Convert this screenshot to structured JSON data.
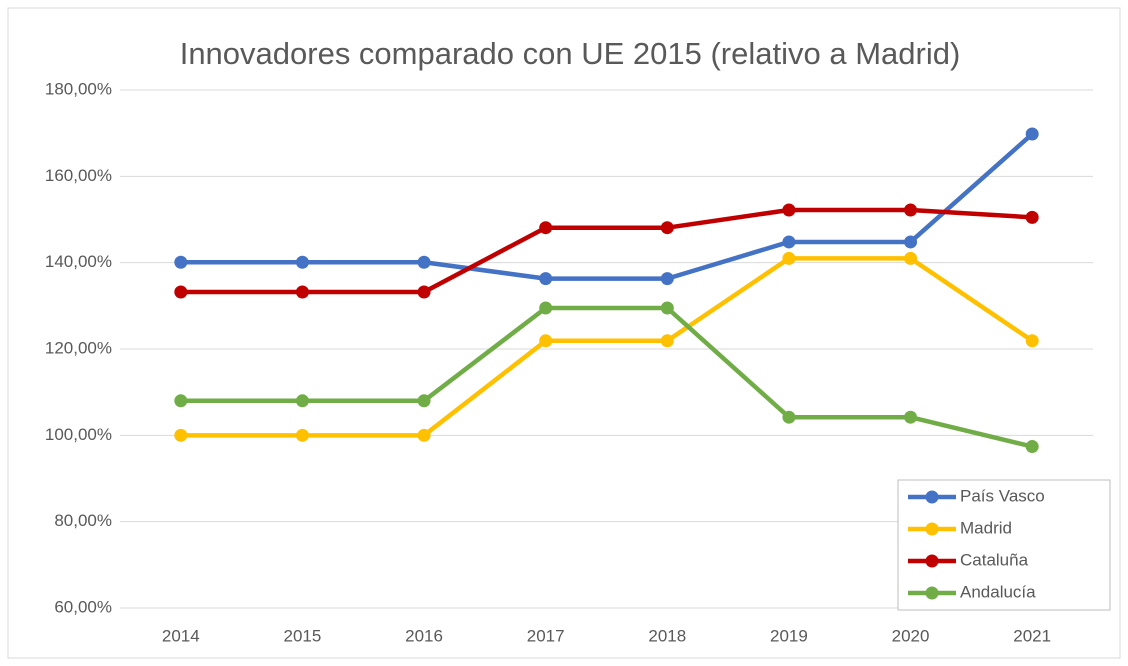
{
  "chart_data": {
    "type": "line",
    "title": "Innovadores comparado con UE 2015 (relativo a Madrid)",
    "categories": [
      "2014",
      "2015",
      "2016",
      "2017",
      "2018",
      "2019",
      "2020",
      "2021"
    ],
    "series": [
      {
        "name": "País Vasco",
        "color": "#4472c4",
        "values": [
          140.1,
          140.1,
          140.1,
          136.3,
          136.3,
          144.8,
          144.8,
          169.8
        ]
      },
      {
        "name": "Madrid",
        "color": "#ffc000",
        "values": [
          100,
          100,
          100,
          121.9,
          121.9,
          141,
          141,
          121.9
        ]
      },
      {
        "name": "Cataluña",
        "color": "#c00000",
        "values": [
          133.2,
          133.2,
          133.2,
          148.1,
          148.1,
          152.2,
          152.2,
          150.5
        ]
      },
      {
        "name": "Andalucía",
        "color": "#70ad47",
        "values": [
          108,
          108,
          108,
          129.5,
          129.5,
          104.2,
          104.2,
          97.4
        ]
      }
    ],
    "ylim": [
      60,
      180
    ],
    "yticks": [
      {
        "value": 60,
        "label": "60,00%"
      },
      {
        "value": 80,
        "label": "80,00%"
      },
      {
        "value": 100,
        "label": "100,00%"
      },
      {
        "value": 120,
        "label": "120,00%"
      },
      {
        "value": 140,
        "label": "140,00%"
      },
      {
        "value": 160,
        "label": "160,00%"
      },
      {
        "value": 180,
        "label": "180,00%"
      }
    ],
    "grid": true,
    "legend": "lower right"
  }
}
